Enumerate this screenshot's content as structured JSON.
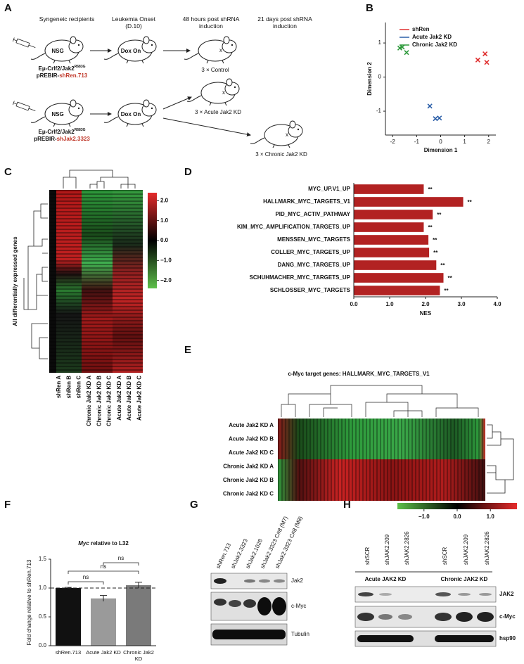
{
  "schematic": {
    "label": "A",
    "stages": [
      "Syngeneic recipients",
      "Leukemia Onset (D.10)",
      "48 hours post shRNA induction",
      "21 days post shRNA induction"
    ],
    "host": "NSG",
    "dox": "Dox On",
    "genotype": "Eμ-Crlf2/Jak2",
    "allele": "R683G",
    "vector": "pREBIR-",
    "hairpins": [
      "shRen.713",
      "shJak2.3323"
    ],
    "outcomes": [
      "3 × Control",
      "3 × Acute Jak2 KD",
      "3 × Chronic Jak2 KD"
    ]
  },
  "chart_data": [
    {
      "type": "scatter",
      "label": "B",
      "xlabel": "Dimension 1",
      "ylabel": "Dimension 2",
      "xlim": [
        -2.3,
        2.3
      ],
      "ylim": [
        -1.7,
        1.6
      ],
      "xticks": [
        -2,
        -1,
        0,
        1,
        2
      ],
      "yticks": [
        -1,
        0,
        1
      ],
      "legend": "upper left",
      "series": [
        {
          "name": "shRen",
          "color": "#e03030",
          "x": [
            1.55,
            1.85,
            1.92
          ],
          "y": [
            0.5,
            0.68,
            0.43
          ]
        },
        {
          "name": "Acute Jak2 KD",
          "color": "#2c5fa8",
          "x": [
            -0.45,
            -0.22,
            -0.05
          ],
          "y": [
            -0.85,
            -1.22,
            -1.2
          ]
        },
        {
          "name": "Chronic Jak2 KD",
          "color": "#2e9a3c",
          "x": [
            -1.7,
            -1.6,
            -1.42
          ],
          "y": [
            0.85,
            0.88,
            0.72
          ]
        }
      ]
    },
    {
      "type": "hbar",
      "label": "D",
      "xlabel": "NES",
      "color": "#b22222",
      "categories": [
        "MYC_UP.V1_UP",
        "HALLMARK_MYC_TARGETS_V1",
        "PID_MYC_ACTIV_PATHWAY",
        "KIM_MYC_AMPLIFICATION_TARGETS_UP",
        "MENSSEN_MYC_TARGETS",
        "COLLER_MYC_TARGETS_UP",
        "DANG_MYC_TARGETS_UP",
        "SCHUHMACHER_MYC_TARGETS_UP",
        "SCHLOSSER_MYC_TARGETS"
      ],
      "values": [
        1.95,
        3.05,
        2.2,
        1.95,
        2.08,
        2.1,
        2.3,
        2.5,
        2.4
      ],
      "annotations": [
        "**",
        "**",
        "**",
        "**",
        "**",
        "**",
        "**",
        "**",
        "**"
      ],
      "xlim": [
        0,
        4
      ],
      "xticks": [
        {
          "value": 0,
          "label": "0.0"
        },
        {
          "value": 1,
          "label": "1.0"
        },
        {
          "value": 2,
          "label": "2.0"
        },
        {
          "value": 3,
          "label": "3.0"
        },
        {
          "value": 4,
          "label": "4.0"
        }
      ]
    },
    {
      "type": "bar",
      "label": "F",
      "title_italic": "Myc",
      "title": " relative to L32",
      "ylabel": "Fold change relative to shRen.713",
      "categories": [
        "shRen.713",
        "Acute Jak2 KD",
        "Chronic Jak2 KD"
      ],
      "values": [
        1.0,
        0.82,
        1.05
      ],
      "errors": [
        0.01,
        0.05,
        0.05
      ],
      "colors": [
        "#111111",
        "#9a9a9a",
        "#7a7a7a"
      ],
      "ylim": [
        0,
        1.5
      ],
      "yticks": [
        {
          "value": 0,
          "label": "0.0"
        },
        {
          "value": 0.5,
          "label": "0.5"
        },
        {
          "value": 1,
          "label": "1.0"
        },
        {
          "value": 1.5,
          "label": "1.5"
        }
      ],
      "reference_line": 1,
      "significance": [
        "ns",
        "ns",
        "ns"
      ]
    }
  ],
  "heatmap_c": {
    "label": "C",
    "ylabel": "All differentially expressed genes",
    "columns": [
      "shRen A",
      "shRen B",
      "shRen C",
      "Chronic Jak2 KD A",
      "Chronic Jak2 KD B",
      "Chronic Jak2 KD C",
      "Acute Jak2 KD A",
      "Acute Jak2 KD B",
      "Acute Jak2 KD C"
    ],
    "clim": [
      -2.4,
      2.4
    ],
    "colorbar_ticks": [
      {
        "value": 2,
        "label": "2.0"
      },
      {
        "value": 1,
        "label": "1.0"
      },
      {
        "value": 0,
        "label": "0.0"
      },
      {
        "value": -1,
        "label": "−1.0"
      },
      {
        "value": -2,
        "label": "−2.0"
      }
    ]
  },
  "heatmap_e": {
    "label": "E",
    "title": "c-Myc target genes: HALLMARK_MYC_TARGETS_V1",
    "rows": [
      "Acute Jak2 KD A",
      "Acute Jak2 KD B",
      "Acute Jak2 KD C",
      "Chronic Jak2 KD A",
      "Chronic Jak2 KD B",
      "Chronic Jak2 KD C"
    ],
    "clim": [
      -1.8,
      1.8
    ],
    "colorbar_ticks": [
      {
        "value": -1,
        "label": "−1.0"
      },
      {
        "value": 0,
        "label": "0.0"
      },
      {
        "value": 1,
        "label": "1.0"
      }
    ]
  },
  "blot_g": {
    "label": "G",
    "lanes": [
      {
        "text": "shRen.713",
        "color": "#111111"
      },
      {
        "text": "shJak2.3323",
        "color": "#111111"
      },
      {
        "text": "shJak2.1028",
        "color": "#111111"
      },
      {
        "text": "shJak2.3323 C#8 (M7)",
        "color": "#c0392b"
      },
      {
        "text": "shJak2.3323 C#8 (M8)",
        "color": "#c0392b"
      }
    ],
    "proteins": [
      "Jak2",
      "c-Myc",
      "Tubulin"
    ]
  },
  "blot_h": {
    "label": "H",
    "lanes": [
      "shSCR",
      "shJAK2.209",
      "shJAK2.2826",
      "shSCR",
      "shJAK2.209",
      "shJAK2.2826"
    ],
    "groups": [
      "Acute JAK2 KD",
      "Chronic JAK2 KD"
    ],
    "proteins": [
      "JAK2",
      "c-Myc",
      "hsp90"
    ]
  }
}
